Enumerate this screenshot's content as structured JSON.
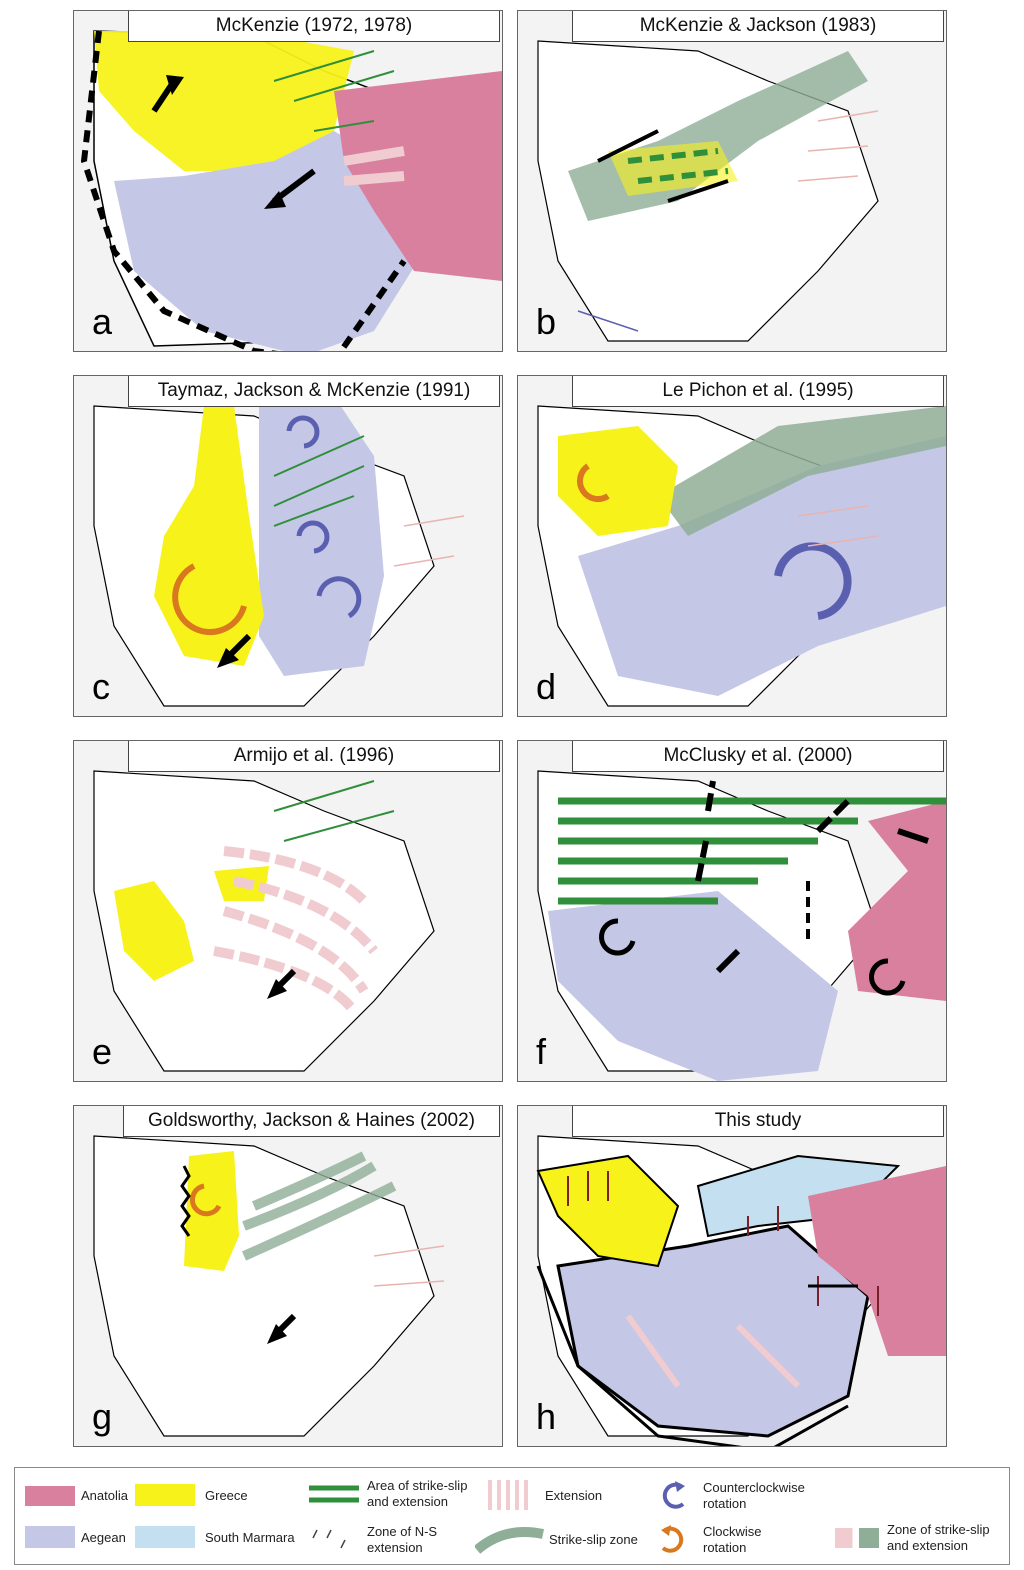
{
  "colors": {
    "anatolia": "#d9809f",
    "greece": "#f7f21a",
    "aegean": "#c4c7e6",
    "south_marmara": "#c4dff0",
    "strike_slip_zone": "#8fae97",
    "extension": "#f0cbd0",
    "ccw_rotation": "#5a5fb0",
    "cw_rotation": "#d9781e",
    "green_line": "#2f8f3a",
    "land": "#f3f3f3"
  },
  "panels": [
    {
      "id": "a",
      "label": "a",
      "title": "McKenzie (1972, 1978)"
    },
    {
      "id": "b",
      "label": "b",
      "title": "McKenzie & Jackson (1983)"
    },
    {
      "id": "c",
      "label": "c",
      "title": "Taymaz, Jackson & McKenzie (1991)"
    },
    {
      "id": "d",
      "label": "d",
      "title": "Le Pichon et al. (1995)"
    },
    {
      "id": "e",
      "label": "e",
      "title": "Armijo et al. (1996)"
    },
    {
      "id": "f",
      "label": "f",
      "title": "McClusky et al. (2000)"
    },
    {
      "id": "g",
      "label": "g",
      "title": "Goldsworthy, Jackson & Haines (2002)"
    },
    {
      "id": "h",
      "label": "h",
      "title": "This study"
    }
  ],
  "legend": {
    "anatolia": "Anatolia",
    "greece": "Greece",
    "aegean": "Aegean",
    "south_marmara": "South Marmara",
    "strike_slip_extension_area": "Area of strike-slip and extension",
    "ns_extension_zone": "Zone of N-S extension",
    "extension": "Extension",
    "strike_slip_zone": "Strike-slip zone",
    "ccw_rotation": "Counterclockwise rotation",
    "cw_rotation": "Clockwise rotation",
    "strike_slip_extension_zone": "Zone of strike-slip and extension"
  }
}
